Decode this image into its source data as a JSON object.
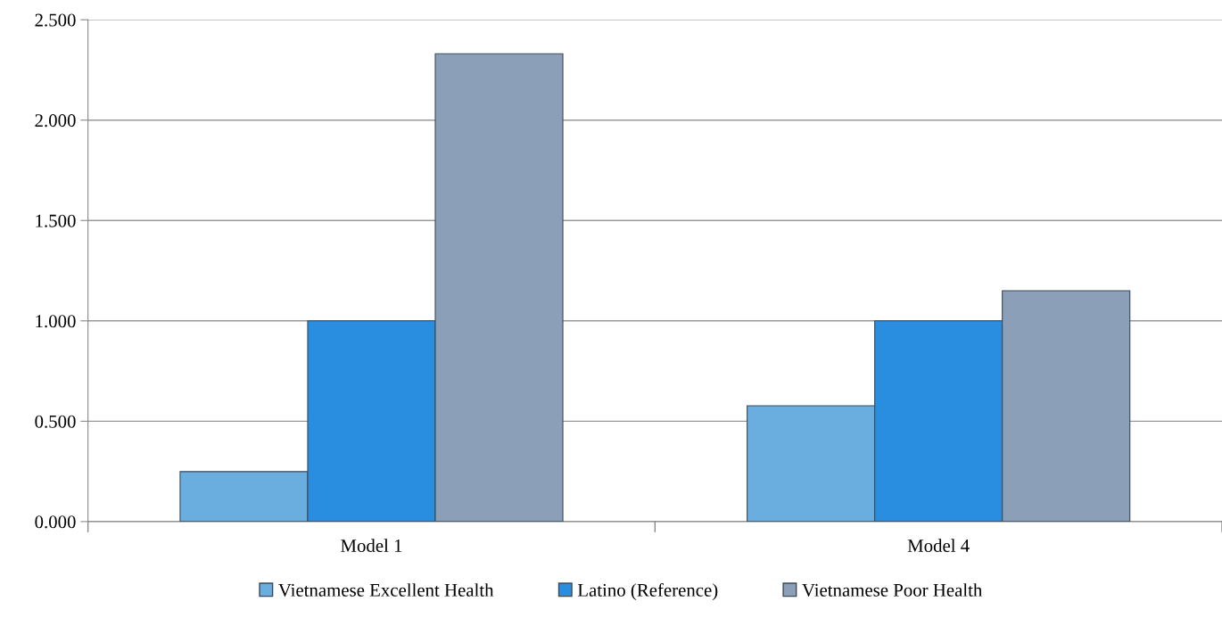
{
  "chart_data": {
    "type": "bar",
    "categories": [
      "Model 1",
      "Model 4"
    ],
    "series": [
      {
        "name": "Vietnamese Excellent Health",
        "color": "#6aaee0",
        "values": [
          0.249,
          0.577
        ]
      },
      {
        "name": "Latino (Reference)",
        "color": "#2a8ee0",
        "values": [
          1.0,
          1.0
        ]
      },
      {
        "name": "Vietnamese Poor Health",
        "color": "#8c9fb8",
        "values": [
          2.331,
          1.15
        ]
      }
    ],
    "ylim": [
      0,
      2.5
    ],
    "yticks": [
      {
        "value": 0,
        "label": "0.000"
      },
      {
        "value": 0.5,
        "label": "0.500"
      },
      {
        "value": 1,
        "label": "1.000"
      },
      {
        "value": 1.5,
        "label": "1.500"
      },
      {
        "value": 2,
        "label": "2.000"
      },
      {
        "value": 2.5,
        "label": "2.500"
      }
    ],
    "grid": "y",
    "legend": "bottom"
  }
}
